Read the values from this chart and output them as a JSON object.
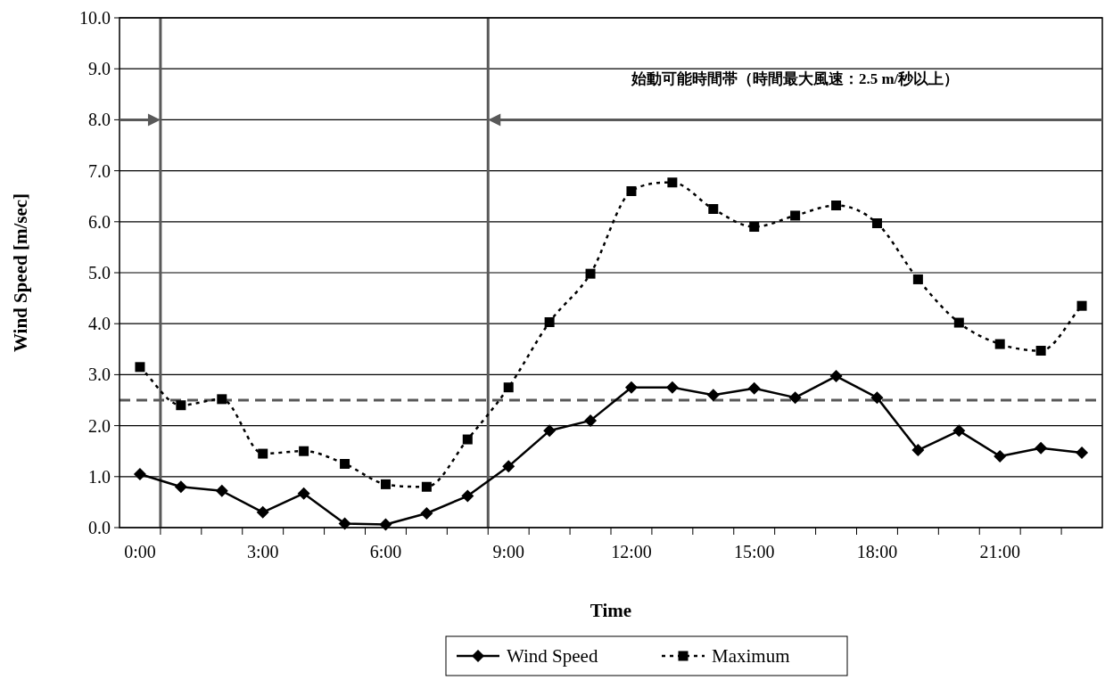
{
  "chart_data": {
    "type": "line",
    "xlabel": "Time",
    "ylabel": "Wind Speed [m/sec]",
    "categories": [
      "0:00",
      null,
      null,
      "3:00",
      null,
      null,
      "6:00",
      null,
      null,
      "9:00",
      null,
      null,
      "12:00",
      null,
      null,
      "15:00",
      null,
      null,
      "18:00",
      null,
      null,
      "21:00",
      null,
      null
    ],
    "series": [
      {
        "name": "Wind Speed",
        "color": "#000000",
        "marker": "diamond",
        "line_style": "solid",
        "values": [
          1.05,
          0.8,
          0.72,
          0.3,
          0.67,
          0.08,
          0.06,
          0.28,
          0.62,
          1.2,
          1.9,
          2.1,
          2.75,
          2.75,
          2.6,
          2.73,
          2.55,
          2.97,
          2.55,
          1.52,
          1.9,
          1.4,
          1.56,
          1.47
        ]
      },
      {
        "name": "Maximum",
        "color": "#000000",
        "marker": "square",
        "line_style": "dotted",
        "values": [
          3.15,
          2.4,
          2.52,
          1.45,
          1.5,
          1.25,
          0.85,
          0.8,
          1.73,
          2.75,
          4.03,
          4.98,
          6.6,
          6.77,
          6.25,
          5.9,
          6.12,
          6.32,
          5.97,
          4.87,
          4.02,
          3.6,
          3.47,
          4.35
        ]
      }
    ],
    "ylim": [
      0,
      10
    ],
    "yticks": [
      {
        "value": 0,
        "label": "0.0"
      },
      {
        "value": 1,
        "label": "1.0"
      },
      {
        "value": 2,
        "label": "2.0"
      },
      {
        "value": 3,
        "label": "3.0"
      },
      {
        "value": 4,
        "label": "4.0"
      },
      {
        "value": 5,
        "label": "5.0"
      },
      {
        "value": 6,
        "label": "6.0"
      },
      {
        "value": 7,
        "label": "7.0"
      },
      {
        "value": 8,
        "label": "8.0"
      },
      {
        "value": 9,
        "label": "9.0"
      },
      {
        "value": 10,
        "label": "10.0"
      }
    ],
    "grid": "y",
    "legend": "bottom",
    "ref_lines": [
      {
        "axis": "y",
        "value": 2.5,
        "color": "#595959",
        "line_style": "dashed"
      }
    ],
    "annotations": [
      "始動可能時間帯（時間最大風速：2.5 m/秒以上）"
    ]
  }
}
